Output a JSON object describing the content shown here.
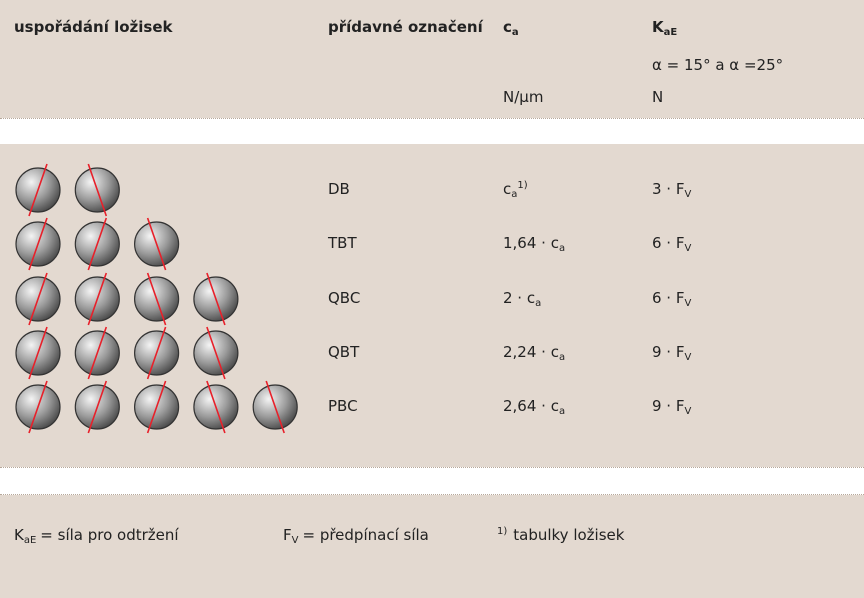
{
  "header": {
    "columns": [
      {
        "title": "uspořádání ložisek"
      },
      {
        "title": "přídavné označení"
      },
      {
        "title": "c",
        "title_sub": "a",
        "unit": "N/μm"
      },
      {
        "title": "K",
        "title_sub": "aE",
        "note": "α = 15° a α =25°",
        "unit": "N"
      }
    ]
  },
  "table": {
    "rows": [
      {
        "designation": "DB",
        "ca": {
          "text": "c",
          "sub": "a",
          "sup": "1)"
        },
        "kae": {
          "text": "3 · F",
          "sub": "V"
        }
      },
      {
        "designation": "TBT",
        "ca": {
          "text": "1,64 · c",
          "sub": "a"
        },
        "kae": {
          "text": "6 · F",
          "sub": "V"
        }
      },
      {
        "designation": "QBC",
        "ca": {
          "text": "2 · c",
          "sub": "a"
        },
        "kae": {
          "text": "6 · F",
          "sub": "V"
        }
      },
      {
        "designation": "QBT",
        "ca": {
          "text": "2,24 · c",
          "sub": "a"
        },
        "kae": {
          "text": "9 · F",
          "sub": "V"
        }
      },
      {
        "designation": "PBC",
        "ca": {
          "text": "2,64 · c",
          "sub": "a"
        },
        "kae": {
          "text": "9 · F",
          "sub": "V"
        }
      }
    ]
  },
  "footer": [
    {
      "text": "K",
      "sub": "aE",
      "rest": "= síla pro odtržení"
    },
    {
      "text": "F",
      "sub": "V",
      "rest": "= předpínací síla"
    },
    {
      "sup": "1)",
      "rest": "tabulky ložisek"
    }
  ]
}
